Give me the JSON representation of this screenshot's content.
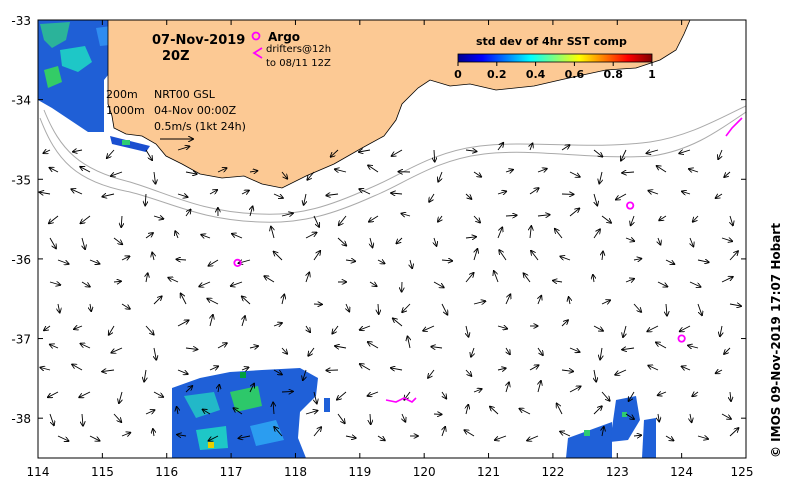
{
  "map": {
    "x_ticks": [
      "114",
      "115",
      "116",
      "117",
      "118",
      "119",
      "120",
      "121",
      "122",
      "123",
      "124",
      "125"
    ],
    "y_ticks": [
      "-33",
      "-34",
      "-35",
      "-36",
      "-37",
      "-38"
    ],
    "lon_range": [
      114,
      125
    ],
    "lat_range": [
      -38.5,
      -33
    ],
    "date": "07-Nov-2019",
    "hour": "20Z",
    "legend": {
      "argo_label": "Argo",
      "drifters_label": "drifters@12h",
      "drifters_sub": "to 08/11 12Z"
    },
    "isobaths": [
      "200m",
      "1000m"
    ],
    "info": {
      "product": "NRT00 GSL",
      "analysis_time": "04-Nov 00:00Z",
      "vector_scale": "0.5m/s (1kt 24h)"
    },
    "colorbar": {
      "title": "std dev of 4hr SST comp",
      "ticks": [
        "0",
        "0.2",
        "0.4",
        "0.6",
        "0.8",
        "1"
      ],
      "range": [
        0,
        1
      ]
    },
    "credit": "© IMOS 09-Nov-2019 17:07 Hobart",
    "argo_floats": [
      {
        "lon": 123.2,
        "lat": -35.33
      },
      {
        "lon": 124.0,
        "lat": -37.0
      },
      {
        "lon": 117.1,
        "lat": -36.05
      }
    ],
    "colors": {
      "land": "#fcc994",
      "argo": "#ff00ff",
      "isobath": "#aaaaaa"
    }
  }
}
